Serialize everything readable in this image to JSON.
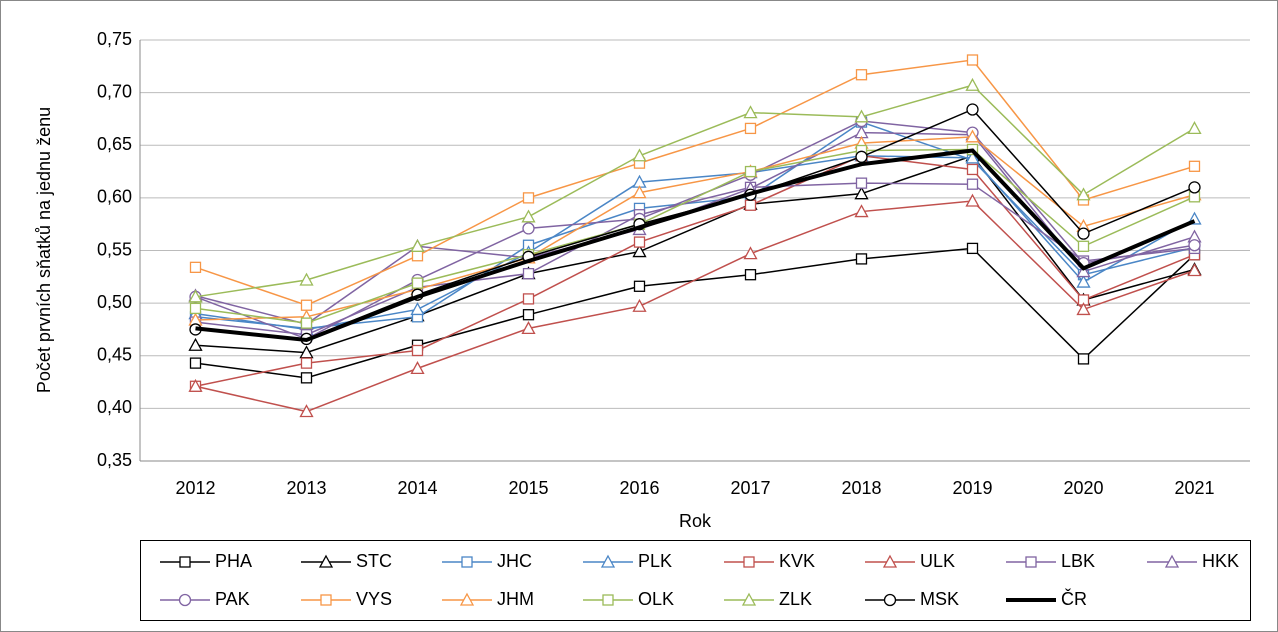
{
  "chart_data": {
    "type": "line",
    "x_label": "Rok",
    "y_label": "Počet prvních sňatků na jednu ženu",
    "categories": [
      "2012",
      "2013",
      "2014",
      "2015",
      "2016",
      "2017",
      "2018",
      "2019",
      "2020",
      "2021"
    ],
    "ylim": [
      0.35,
      0.75
    ],
    "yticks": [
      {
        "value": 0.35,
        "label": "0,35"
      },
      {
        "value": 0.4,
        "label": "0,40"
      },
      {
        "value": 0.45,
        "label": "0,45"
      },
      {
        "value": 0.5,
        "label": "0,50"
      },
      {
        "value": 0.55,
        "label": "0,55"
      },
      {
        "value": 0.6,
        "label": "0,60"
      },
      {
        "value": 0.65,
        "label": "0,65"
      },
      {
        "value": 0.7,
        "label": "0,70"
      },
      {
        "value": 0.75,
        "label": "0,75"
      }
    ],
    "grid": true,
    "legend": "bottom",
    "series": [
      {
        "name": "PHA",
        "color": "#000000",
        "marker": "square",
        "values": [
          0.443,
          0.429,
          0.46,
          0.489,
          0.516,
          0.527,
          0.542,
          0.552,
          0.447,
          0.546
        ]
      },
      {
        "name": "STC",
        "color": "#000000",
        "marker": "triangle",
        "values": [
          0.46,
          0.453,
          0.488,
          0.528,
          0.549,
          0.594,
          0.604,
          0.64,
          0.503,
          0.532
        ]
      },
      {
        "name": "JHC",
        "color": "#4a86c6",
        "marker": "square",
        "values": [
          0.487,
          0.476,
          0.487,
          0.555,
          0.59,
          0.601,
          0.672,
          0.636,
          0.527,
          0.553
        ]
      },
      {
        "name": "PLK",
        "color": "#4a86c6",
        "marker": "triangle",
        "values": [
          0.49,
          0.475,
          0.494,
          0.548,
          0.615,
          0.624,
          0.64,
          0.638,
          0.52,
          0.58
        ]
      },
      {
        "name": "KVK",
        "color": "#c0504d",
        "marker": "square",
        "values": [
          0.421,
          0.443,
          0.455,
          0.504,
          0.558,
          0.593,
          0.64,
          0.627,
          0.503,
          0.546
        ]
      },
      {
        "name": "ULK",
        "color": "#c0504d",
        "marker": "triangle",
        "values": [
          0.421,
          0.397,
          0.438,
          0.476,
          0.497,
          0.547,
          0.587,
          0.597,
          0.494,
          0.531
        ]
      },
      {
        "name": "LBK",
        "color": "#8064a2",
        "marker": "square",
        "values": [
          0.482,
          0.47,
          0.515,
          0.528,
          0.584,
          0.61,
          0.614,
          0.613,
          0.54,
          0.552
        ]
      },
      {
        "name": "HKK",
        "color": "#8064a2",
        "marker": "triangle",
        "values": [
          0.507,
          0.48,
          0.554,
          0.543,
          0.57,
          0.609,
          0.662,
          0.66,
          0.53,
          0.563
        ]
      },
      {
        "name": "PAK",
        "color": "#8064a2",
        "marker": "circle",
        "values": [
          0.506,
          0.466,
          0.522,
          0.571,
          0.58,
          0.622,
          0.673,
          0.662,
          0.538,
          0.555
        ]
      },
      {
        "name": "VYS",
        "color": "#f79646",
        "marker": "square",
        "values": [
          0.534,
          0.498,
          0.545,
          0.6,
          0.633,
          0.666,
          0.717,
          0.731,
          0.598,
          0.63
        ]
      },
      {
        "name": "JHM",
        "color": "#f79646",
        "marker": "triangle",
        "values": [
          0.484,
          0.487,
          0.513,
          0.543,
          0.605,
          0.625,
          0.652,
          0.658,
          0.573,
          0.603
        ]
      },
      {
        "name": "OLK",
        "color": "#9bbb59",
        "marker": "square",
        "values": [
          0.495,
          0.481,
          0.519,
          0.546,
          0.575,
          0.625,
          0.645,
          0.646,
          0.554,
          0.601
        ]
      },
      {
        "name": "ZLK",
        "color": "#9bbb59",
        "marker": "triangle",
        "values": [
          0.506,
          0.522,
          0.554,
          0.582,
          0.64,
          0.681,
          0.677,
          0.707,
          0.603,
          0.666
        ]
      },
      {
        "name": "MSK",
        "color": "#000000",
        "marker": "circle",
        "values": [
          0.475,
          0.466,
          0.508,
          0.544,
          0.575,
          0.603,
          0.639,
          0.684,
          0.566,
          0.61
        ]
      },
      {
        "name": "ČR",
        "color": "#000000",
        "marker": "none",
        "line_width": 4,
        "values": [
          0.476,
          0.465,
          0.506,
          0.54,
          0.572,
          0.604,
          0.632,
          0.645,
          0.533,
          0.578
        ]
      }
    ]
  }
}
